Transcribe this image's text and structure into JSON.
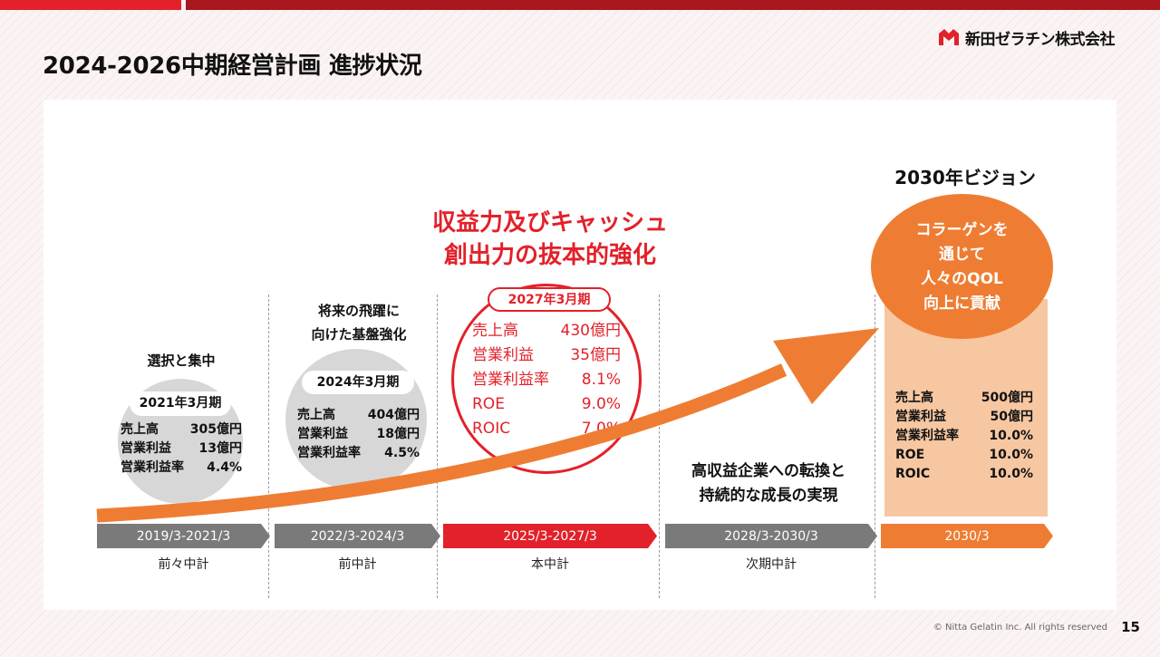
{
  "header": {
    "title": "2024-2026中期経営計画 進捗状況",
    "logo_text": "新田ゼラチン株式会社",
    "logo_icon": "nitta-logo-icon"
  },
  "colors": {
    "red": "#e2212a",
    "dark_red": "#a8181e",
    "orange": "#ee7d33",
    "light_orange": "#f7c7a2",
    "gray": "#7a7a7a",
    "light_gray": "#d7d7d7"
  },
  "headline": {
    "line1": "収益力及びキャッシュ",
    "line2": "創出力の抜本的強化"
  },
  "periods": [
    {
      "heading": "選択と集中",
      "pill": "2021年3月期",
      "rows": [
        [
          "売上高",
          "305億円"
        ],
        [
          "営業利益",
          "13億円"
        ],
        [
          "営業利益率",
          "4.4%"
        ]
      ],
      "bar": "2019/3-2021/3",
      "label": "前々中計"
    },
    {
      "heading_line1": "将来の飛躍に",
      "heading_line2": "向けた基盤強化",
      "pill": "2024年3月期",
      "rows": [
        [
          "売上高",
          "404億円"
        ],
        [
          "営業利益",
          "18億円"
        ],
        [
          "営業利益率",
          "4.5%"
        ]
      ],
      "bar": "2022/3-2024/3",
      "label": "前中計"
    },
    {
      "pill": "2027年3月期",
      "rows": [
        [
          "売上高",
          "430億円"
        ],
        [
          "営業利益",
          "35億円"
        ],
        [
          "営業利益率",
          "8.1%"
        ],
        [
          "ROE",
          "9.0%"
        ],
        [
          "ROIC",
          "7.0%"
        ]
      ],
      "bar": "2025/3-2027/3",
      "label": "本中計"
    },
    {
      "text_line1": "高収益企業への転換と",
      "text_line2": "持続的な成長の実現",
      "bar": "2028/3-2030/3",
      "label": "次期中計"
    },
    {
      "vision_title": "2030年ビジョン",
      "circle": [
        "コラーゲンを",
        "通じて",
        "人々のQOL",
        "向上に貢献"
      ],
      "rows": [
        [
          "売上高",
          "500億円"
        ],
        [
          "営業利益",
          "50億円"
        ],
        [
          "営業利益率",
          "10.0%"
        ],
        [
          "ROE",
          "10.0%"
        ],
        [
          "ROIC",
          "10.0%"
        ]
      ],
      "bar": "2030/3"
    }
  ],
  "footer": {
    "copyright": "© Nitta Gelatin Inc. All rights reserved",
    "page": "15"
  }
}
